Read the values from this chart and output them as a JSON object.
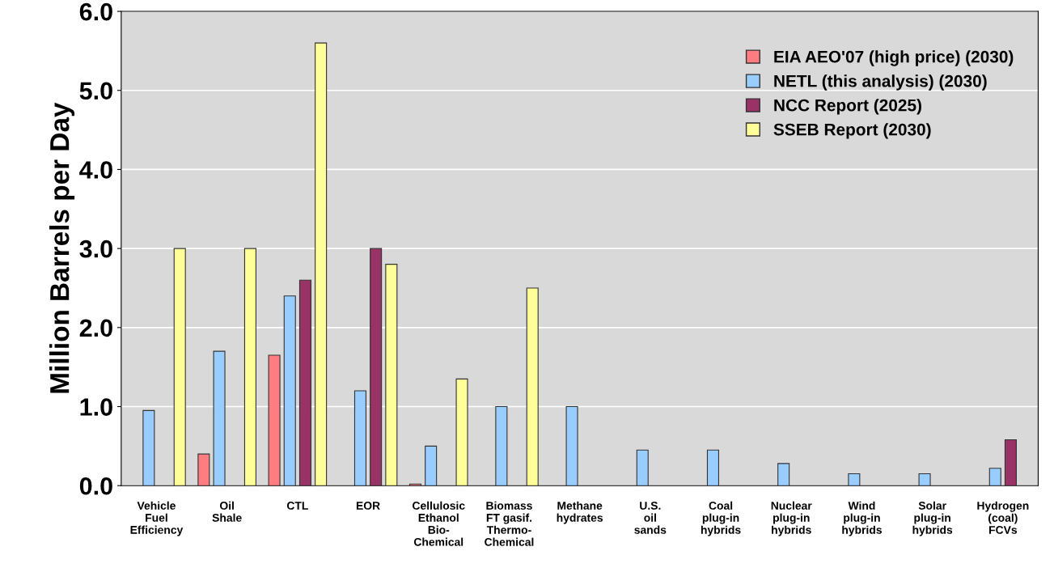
{
  "chart_data": {
    "type": "bar",
    "ylabel": "Million Barrels per Day",
    "categories": [
      "Vehicle\nFuel\nEfficiency",
      "Oil\nShale",
      "CTL",
      "EOR",
      "Cellulosic\nEthanol\nBio-\nChemical",
      "Biomass\nFT gasif.\nThermo-\nChemical",
      "Methane\nhydrates",
      "U.S.\noil\nsands",
      "Coal\nplug-in\nhybrids",
      "Nuclear\nplug-in\nhybrids",
      "Wind\nplug-in\nhybrids",
      "Solar\nplug-in\nhybrids",
      "Hydrogen\n(coal)\nFCVs"
    ],
    "series": [
      {
        "name": "EIA AEO'07 (high price) (2030)",
        "color": "#ff7c80",
        "values": [
          null,
          0.4,
          1.65,
          null,
          0.02,
          null,
          null,
          null,
          null,
          null,
          null,
          null,
          null
        ]
      },
      {
        "name": "NETL (this analysis) (2030)",
        "color": "#99ccff",
        "values": [
          0.95,
          1.7,
          2.4,
          1.2,
          0.5,
          1.0,
          1.0,
          0.45,
          0.45,
          0.28,
          0.15,
          0.15,
          0.22
        ]
      },
      {
        "name": "NCC Report (2025)",
        "color": "#993366",
        "values": [
          null,
          null,
          2.6,
          3.0,
          null,
          null,
          null,
          null,
          null,
          null,
          null,
          null,
          0.58
        ]
      },
      {
        "name": "SSEB Report (2030)",
        "color": "#ffff99",
        "values": [
          3.0,
          3.0,
          5.6,
          2.8,
          1.35,
          2.5,
          null,
          null,
          null,
          null,
          null,
          null,
          null
        ]
      }
    ],
    "ylim": [
      0,
      6
    ],
    "yticks": [
      {
        "value": 0,
        "label": "0.0"
      },
      {
        "value": 1,
        "label": "1.0"
      },
      {
        "value": 2,
        "label": "2.0"
      },
      {
        "value": 3,
        "label": "3.0"
      },
      {
        "value": 4,
        "label": "4.0"
      },
      {
        "value": 5,
        "label": "5.0"
      },
      {
        "value": 6,
        "label": "6.0"
      }
    ],
    "grid": "y",
    "legend": "top right"
  }
}
